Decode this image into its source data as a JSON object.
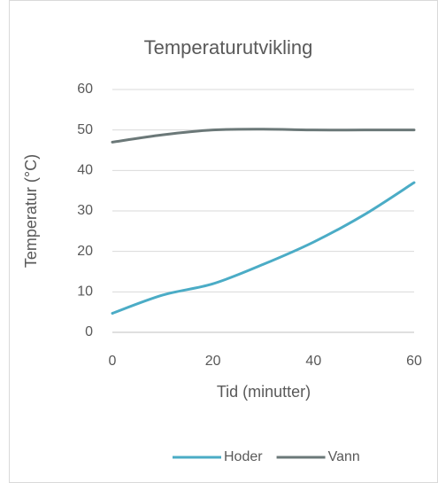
{
  "chart_data": {
    "type": "line",
    "title": "Temperaturutvikling",
    "x_label": "Tid (minutter)",
    "y_label": "Temperatur (°C)",
    "x": [
      0,
      10,
      20,
      30,
      40,
      50,
      60
    ],
    "series": [
      {
        "name": "Hoder",
        "color": "#4bacc6",
        "values": [
          4.7,
          9.2,
          12,
          16.8,
          22.3,
          29,
          37
        ]
      },
      {
        "name": "Vann",
        "color": "#6b7878",
        "values": [
          47,
          48.8,
          50,
          50.2,
          50,
          50,
          50
        ]
      }
    ],
    "xlim": [
      0,
      60
    ],
    "xticks": [
      0,
      20,
      40,
      60
    ],
    "ylim": [
      0,
      60
    ],
    "yticks": [
      0,
      10,
      20,
      30,
      40,
      50,
      60
    ],
    "grid": true,
    "smooth": true,
    "legend": "bottom"
  }
}
